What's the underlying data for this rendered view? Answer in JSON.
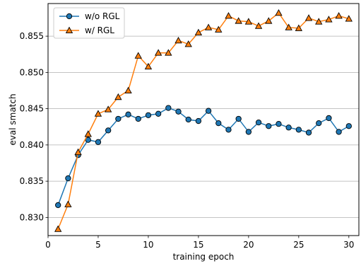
{
  "chart_data": {
    "type": "line",
    "xlabel": "training epoch",
    "ylabel": "eval smatch",
    "xlim": [
      0,
      31
    ],
    "ylim": [
      0.8275,
      0.8595
    ],
    "xticks": [
      0,
      5,
      10,
      15,
      20,
      25,
      30
    ],
    "yticks": [
      0.83,
      0.835,
      0.84,
      0.845,
      0.85,
      0.855
    ],
    "ytick_labels": [
      "0.830",
      "0.835",
      "0.840",
      "0.845",
      "0.850",
      "0.855"
    ],
    "grid": "horizontal",
    "legend_position": "top-left",
    "x": [
      1,
      2,
      3,
      4,
      5,
      6,
      7,
      8,
      9,
      10,
      11,
      12,
      13,
      14,
      15,
      16,
      17,
      18,
      19,
      20,
      21,
      22,
      23,
      24,
      25,
      26,
      27,
      28,
      29,
      30
    ],
    "series": [
      {
        "name": "w/o RGL",
        "marker": "circle",
        "color": "#1f77b4",
        "values": [
          0.8317,
          0.8354,
          0.8386,
          0.8407,
          0.8404,
          0.842,
          0.8436,
          0.8442,
          0.8436,
          0.8441,
          0.8443,
          0.8451,
          0.8446,
          0.8435,
          0.8433,
          0.8447,
          0.843,
          0.8421,
          0.8436,
          0.8418,
          0.8431,
          0.8426,
          0.8429,
          0.8424,
          0.8421,
          0.8417,
          0.843,
          0.8437,
          0.8418,
          0.8426
        ]
      },
      {
        "name": "w/ RGL",
        "marker": "triangle",
        "color": "#ff7f0e",
        "values": [
          0.8284,
          0.8318,
          0.839,
          0.8415,
          0.8443,
          0.8449,
          0.8466,
          0.8475,
          0.8523,
          0.8508,
          0.8527,
          0.8527,
          0.8544,
          0.8539,
          0.8555,
          0.8562,
          0.8559,
          0.8578,
          0.8571,
          0.857,
          0.8564,
          0.8571,
          0.8582,
          0.8562,
          0.8561,
          0.8575,
          0.857,
          0.8573,
          0.8578,
          0.8574
        ]
      }
    ]
  }
}
